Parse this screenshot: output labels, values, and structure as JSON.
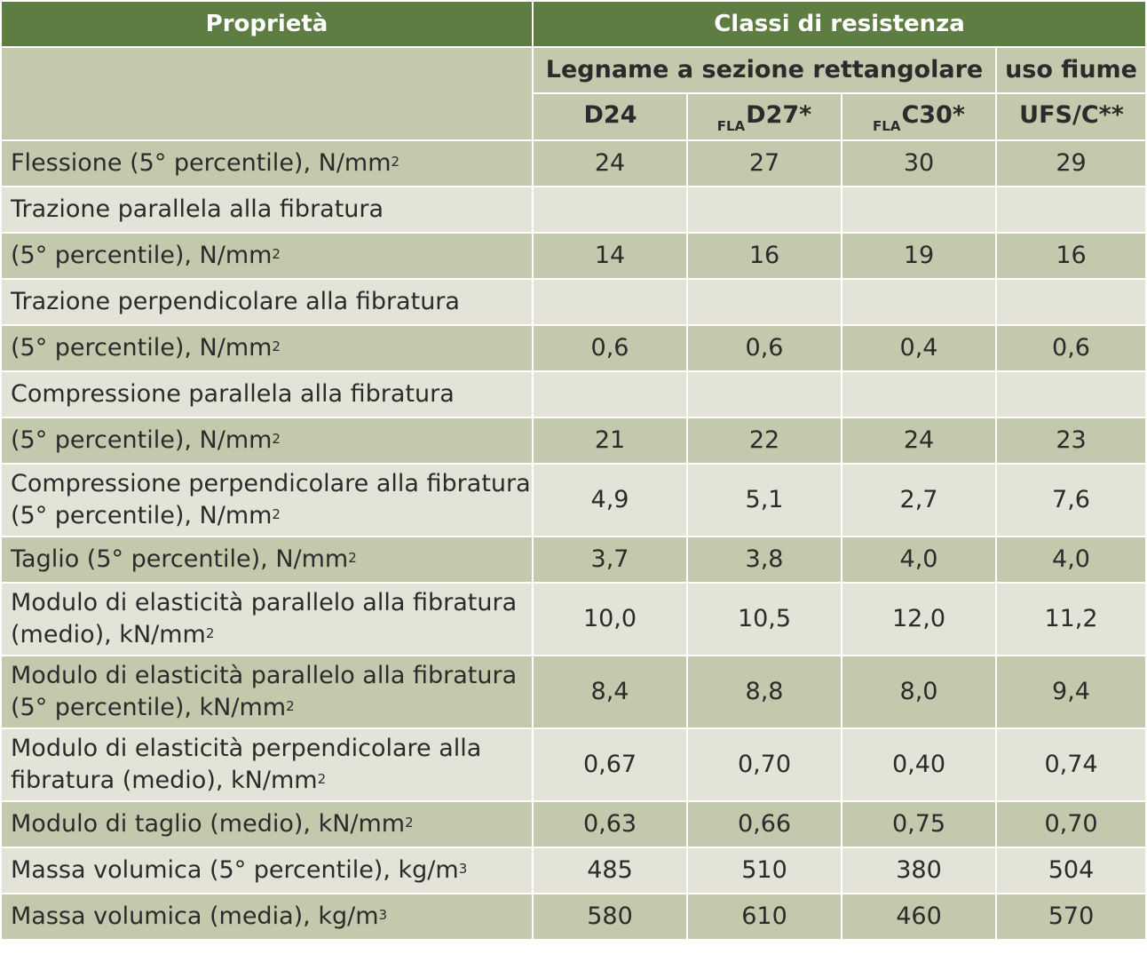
{
  "header": {
    "property_label": "Proprietà",
    "classes_label": "Classi di resistenza",
    "group_rect": "Legname a sezione rettangolare",
    "group_river": "uso fiume",
    "classes": [
      {
        "prefix": "",
        "name": "D24"
      },
      {
        "prefix": "FLA",
        "name": "D27*"
      },
      {
        "prefix": "FLA",
        "name": "C30*"
      },
      {
        "prefix": "",
        "name": "UFS/C**"
      }
    ]
  },
  "rows": [
    {
      "shade": "dark",
      "lines": [
        "Flessione (5° percentile), N/mm"
      ],
      "sup": "2",
      "values": [
        "24",
        "27",
        "30",
        "29"
      ]
    },
    {
      "shade": "light",
      "lines": [
        "Trazione parallela alla fibratura"
      ],
      "sup": "",
      "values": [
        "",
        "",
        "",
        ""
      ]
    },
    {
      "shade": "dark",
      "lines": [
        "(5° percentile), N/mm"
      ],
      "sup": "2",
      "values": [
        "14",
        "16",
        "19",
        "16"
      ]
    },
    {
      "shade": "light",
      "lines": [
        "Trazione perpendicolare alla fibratura"
      ],
      "sup": "",
      "values": [
        "",
        "",
        "",
        ""
      ]
    },
    {
      "shade": "dark",
      "lines": [
        "(5° percentile), N/mm"
      ],
      "sup": "2",
      "values": [
        "0,6",
        "0,6",
        "0,4",
        "0,6"
      ]
    },
    {
      "shade": "light",
      "lines": [
        "Compressione parallela alla fibratura"
      ],
      "sup": "",
      "values": [
        "",
        "",
        "",
        ""
      ]
    },
    {
      "shade": "dark",
      "lines": [
        "(5° percentile), N/mm"
      ],
      "sup": "2",
      "values": [
        "21",
        "22",
        "24",
        "23"
      ]
    },
    {
      "shade": "light",
      "lines": [
        "Compressione perpendicolare alla fibratura",
        "(5° percentile), N/mm"
      ],
      "sup": "2",
      "values": [
        "4,9",
        "5,1",
        "2,7",
        "7,6"
      ]
    },
    {
      "shade": "dark",
      "lines": [
        "Taglio (5° percentile), N/mm"
      ],
      "sup": "2",
      "values": [
        "3,7",
        "3,8",
        "4,0",
        "4,0"
      ]
    },
    {
      "shade": "light",
      "lines": [
        "Modulo di elasticità parallelo alla fibratura",
        "(medio), kN/mm"
      ],
      "sup": "2",
      "values": [
        "10,0",
        "10,5",
        "12,0",
        "11,2"
      ]
    },
    {
      "shade": "dark",
      "lines": [
        "Modulo di elasticità parallelo alla fibratura",
        "(5° percentile), kN/mm"
      ],
      "sup": "2",
      "values": [
        "8,4",
        "8,8",
        "8,0",
        "9,4"
      ]
    },
    {
      "shade": "light",
      "lines": [
        "Modulo di elasticità perpendicolare alla",
        "fibratura (medio), kN/mm"
      ],
      "sup": "2",
      "values": [
        "0,67",
        "0,70",
        "0,40",
        "0,74"
      ]
    },
    {
      "shade": "dark",
      "lines": [
        "Modulo di taglio (medio), kN/mm"
      ],
      "sup": "2",
      "values": [
        "0,63",
        "0,66",
        "0,75",
        "0,70"
      ]
    },
    {
      "shade": "light",
      "lines": [
        "Massa volumica (5° percentile), kg/m"
      ],
      "sup": "3",
      "values": [
        "485",
        "510",
        "380",
        "504"
      ]
    },
    {
      "shade": "dark",
      "lines": [
        "Massa volumica (media), kg/m"
      ],
      "sup": "3",
      "values": [
        "580",
        "610",
        "460",
        "570"
      ]
    }
  ]
}
